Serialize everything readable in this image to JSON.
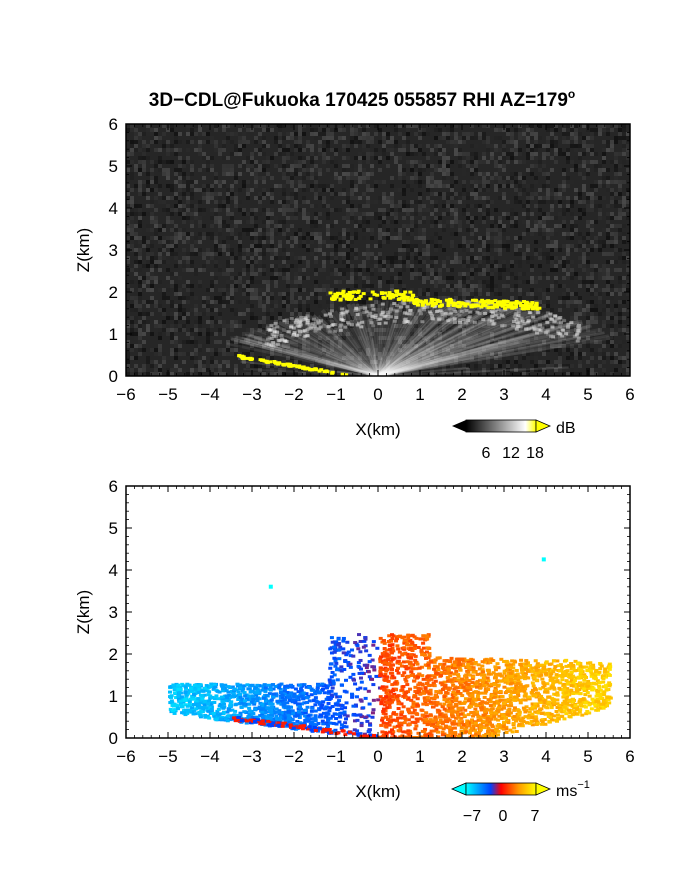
{
  "title": "3D−CDL@Fukuoka 170425 055857 RHI AZ=179",
  "title_degree": "o",
  "chart_data": [
    {
      "type": "heatmap",
      "field": "backscatter",
      "xlabel": "X(km)",
      "ylabel": "Z(km)",
      "xlim": [
        -6,
        6
      ],
      "ylim": [
        0,
        6
      ],
      "x_ticks": [
        "−6",
        "−5",
        "−4",
        "−3",
        "−2",
        "−1",
        "0",
        "1",
        "2",
        "3",
        "4",
        "5",
        "6"
      ],
      "y_ticks": [
        "0",
        "1",
        "2",
        "3",
        "4",
        "5",
        "6"
      ],
      "background_color": "#262626",
      "colorbar": {
        "unit": "dB",
        "ticks": [
          "6",
          "12",
          "18"
        ],
        "range": [
          0,
          20
        ],
        "colors": [
          "#000000",
          "#ffffff",
          "#ffff00"
        ]
      },
      "cloud_base": [
        {
          "x_from": -1.2,
          "x_to": 3.8,
          "z": 1.95
        }
      ],
      "ground_echo": [
        {
          "x_from": -3.4,
          "x_to": -0.7,
          "z_from": 0.5,
          "z_to": 0.05
        }
      ]
    },
    {
      "type": "heatmap",
      "field": "doppler_velocity",
      "xlabel": "X(km)",
      "ylabel": "Z(km)",
      "xlim": [
        -6,
        6
      ],
      "ylim": [
        0,
        6
      ],
      "x_ticks": [
        "−6",
        "−5",
        "−4",
        "−3",
        "−2",
        "−1",
        "0",
        "1",
        "2",
        "3",
        "4",
        "5",
        "6"
      ],
      "y_ticks": [
        "0",
        "1",
        "2",
        "3",
        "4",
        "5",
        "6"
      ],
      "background_color": "#ffffff",
      "colorbar": {
        "unit": "ms",
        "unit_exponent": "−1",
        "ticks": [
          "−7",
          "0",
          "7"
        ],
        "range": [
          -9,
          9
        ],
        "colors": [
          "#00ffff",
          "#0000ff",
          "#ff0000",
          "#ffff00"
        ]
      },
      "velocity_left_of_radar": [
        -7,
        -2
      ],
      "velocity_right_of_radar": [
        2,
        7
      ],
      "echo_extent": {
        "x_from": -5.0,
        "x_to": 5.5,
        "z_top": 2.6
      },
      "isolated_points": [
        {
          "x": -2.6,
          "z": 3.65
        },
        {
          "x": 3.9,
          "z": 4.3
        }
      ]
    }
  ]
}
